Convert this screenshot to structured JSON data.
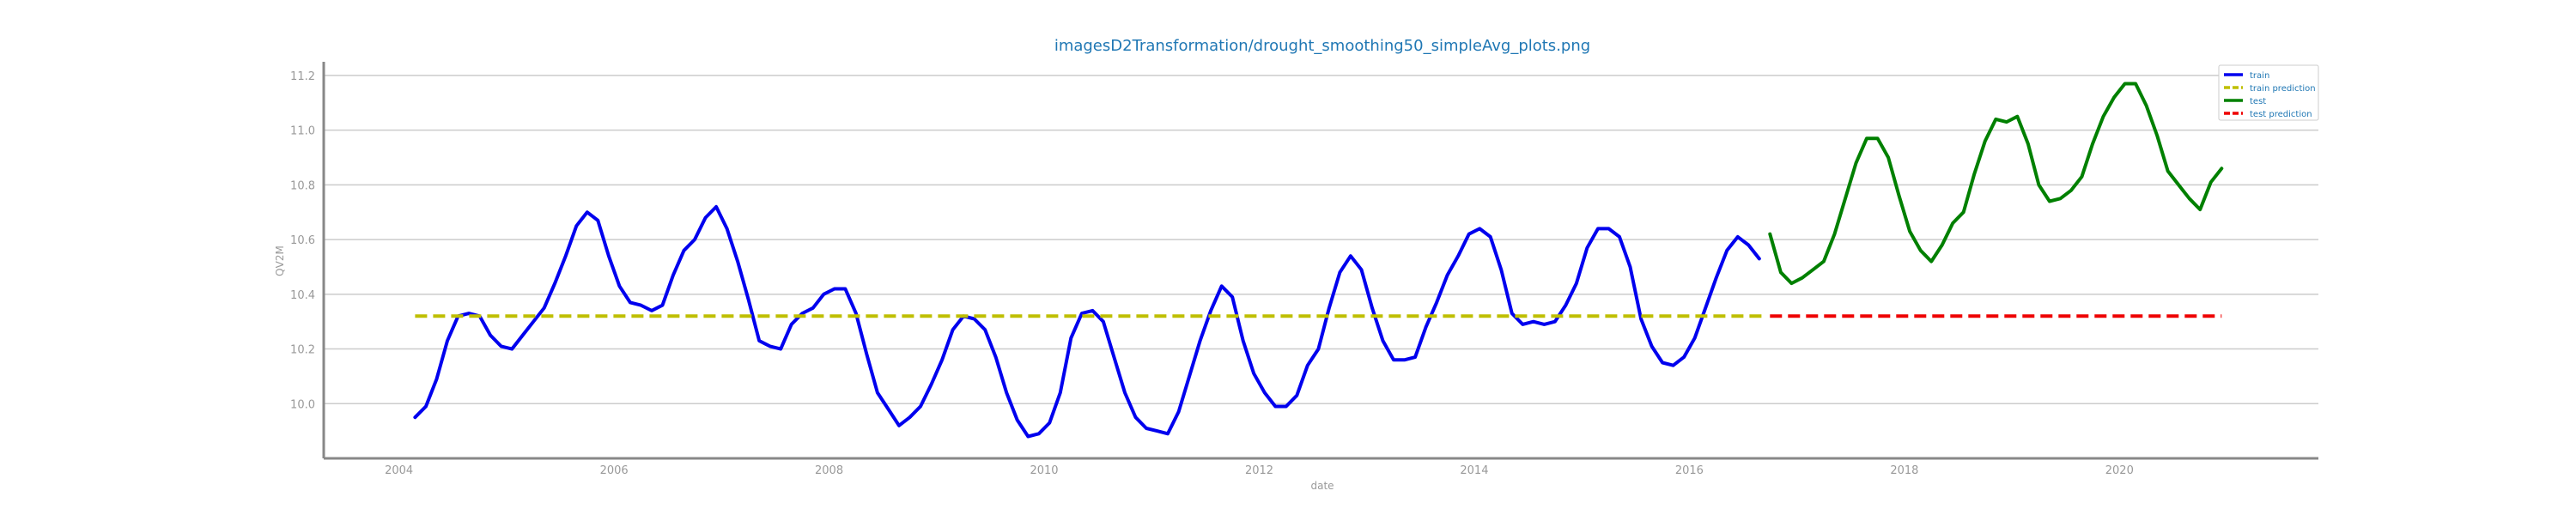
{
  "chart_data": {
    "type": "line",
    "title": "imagesD2Transformation/drought_smoothing50_simpleAvg_plots.png",
    "xlabel": "date",
    "ylabel": "QV2M",
    "xlim": [
      2003.3,
      2021.85
    ],
    "ylim": [
      9.8,
      11.25
    ],
    "x_ticks": [
      2004,
      2006,
      2008,
      2010,
      2012,
      2014,
      2016,
      2018,
      2020
    ],
    "y_ticks": [
      10.0,
      10.2,
      10.4,
      10.6,
      10.8,
      11.0,
      11.2
    ],
    "y_tick_labels": [
      "10.0",
      "10.2",
      "10.4",
      "10.6",
      "10.8",
      "11.0",
      "11.2"
    ],
    "grid": "horizontal",
    "legend_position": "top-right",
    "series": [
      {
        "name": "train",
        "color": "#0000ee",
        "style": "solid",
        "x": [
          2004.15,
          2004.25,
          2004.35,
          2004.45,
          2004.55,
          2004.65,
          2004.75,
          2004.85,
          2004.95,
          2005.05,
          2005.15,
          2005.25,
          2005.35,
          2005.45,
          2005.55,
          2005.65,
          2005.75,
          2005.85,
          2005.95,
          2006.05,
          2006.15,
          2006.25,
          2006.35,
          2006.45,
          2006.55,
          2006.65,
          2006.75,
          2006.85,
          2006.95,
          2007.05,
          2007.15,
          2007.25,
          2007.35,
          2007.45,
          2007.55,
          2007.65,
          2007.75,
          2007.85,
          2007.95,
          2008.05,
          2008.15,
          2008.25,
          2008.35,
          2008.45,
          2008.55,
          2008.65,
          2008.75,
          2008.85,
          2008.95,
          2009.05,
          2009.15,
          2009.25,
          2009.35,
          2009.45,
          2009.55,
          2009.65,
          2009.75,
          2009.85,
          2009.95,
          2010.05,
          2010.15,
          2010.25,
          2010.35,
          2010.45,
          2010.55,
          2010.65,
          2010.75,
          2010.85,
          2010.95,
          2011.05,
          2011.15,
          2011.25,
          2011.35,
          2011.45,
          2011.55,
          2011.65,
          2011.75,
          2011.85,
          2011.95,
          2012.05,
          2012.15,
          2012.25,
          2012.35,
          2012.45,
          2012.55,
          2012.65,
          2012.75,
          2012.85,
          2012.95,
          2013.05,
          2013.15,
          2013.25,
          2013.35,
          2013.45,
          2013.55,
          2013.65,
          2013.75,
          2013.85,
          2013.95,
          2014.05,
          2014.15,
          2014.25,
          2014.35,
          2014.45,
          2014.55,
          2014.65,
          2014.75,
          2014.85,
          2014.95,
          2015.05,
          2015.15,
          2015.25,
          2015.35,
          2015.45,
          2015.55,
          2015.65,
          2015.75,
          2015.85,
          2015.95,
          2016.05,
          2016.15,
          2016.25,
          2016.35,
          2016.45,
          2016.55,
          2016.65
        ],
        "values": [
          9.95,
          9.99,
          10.09,
          10.23,
          10.32,
          10.33,
          10.32,
          10.25,
          10.21,
          10.2,
          10.25,
          10.3,
          10.35,
          10.44,
          10.54,
          10.65,
          10.7,
          10.67,
          10.54,
          10.43,
          10.37,
          10.36,
          10.34,
          10.36,
          10.47,
          10.56,
          10.6,
          10.68,
          10.72,
          10.64,
          10.52,
          10.38,
          10.23,
          10.21,
          10.2,
          10.29,
          10.33,
          10.35,
          10.4,
          10.42,
          10.42,
          10.33,
          10.18,
          10.04,
          9.98,
          9.92,
          9.95,
          9.99,
          10.07,
          10.16,
          10.27,
          10.32,
          10.31,
          10.27,
          10.17,
          10.04,
          9.94,
          9.88,
          9.89,
          9.93,
          10.04,
          10.24,
          10.33,
          10.34,
          10.3,
          10.17,
          10.04,
          9.95,
          9.91,
          9.9,
          9.89,
          9.97,
          10.1,
          10.23,
          10.34,
          10.43,
          10.39,
          10.23,
          10.11,
          10.04,
          9.99,
          9.99,
          10.03,
          10.14,
          10.2,
          10.35,
          10.48,
          10.54,
          10.49,
          10.35,
          10.23,
          10.16,
          10.16,
          10.17,
          10.28,
          10.37,
          10.47,
          10.54,
          10.62,
          10.64,
          10.61,
          10.49,
          10.33,
          10.29,
          10.3,
          10.29,
          10.3,
          10.36,
          10.44,
          10.57,
          10.64,
          10.64,
          10.61,
          10.5,
          10.31,
          10.21,
          10.15,
          10.14,
          10.17,
          10.24,
          10.35,
          10.46,
          10.56,
          10.61,
          10.58,
          10.53
        ]
      },
      {
        "name": "train prediction",
        "color": "#bfbf00",
        "style": "dashed",
        "x": [
          2004.15,
          2016.7
        ],
        "values": [
          10.32,
          10.32
        ]
      },
      {
        "name": "test",
        "color": "#008000",
        "style": "solid",
        "x": [
          2016.75,
          2016.85,
          2016.95,
          2017.05,
          2017.15,
          2017.25,
          2017.35,
          2017.45,
          2017.55,
          2017.65,
          2017.75,
          2017.85,
          2017.95,
          2018.05,
          2018.15,
          2018.25,
          2018.35,
          2018.45,
          2018.55,
          2018.65,
          2018.75,
          2018.85,
          2018.95,
          2019.05,
          2019.15,
          2019.25,
          2019.35,
          2019.45,
          2019.55,
          2019.65,
          2019.75,
          2019.85,
          2019.95,
          2020.05,
          2020.15,
          2020.25,
          2020.35,
          2020.45,
          2020.55,
          2020.65,
          2020.75,
          2020.85,
          2020.95
        ],
        "values": [
          10.62,
          10.48,
          10.44,
          10.46,
          10.49,
          10.52,
          10.62,
          10.75,
          10.88,
          10.97,
          10.97,
          10.9,
          10.76,
          10.63,
          10.56,
          10.52,
          10.58,
          10.66,
          10.7,
          10.84,
          10.96,
          11.04,
          11.03,
          11.05,
          10.95,
          10.8,
          10.74,
          10.75,
          10.78,
          10.83,
          10.95,
          11.05,
          11.12,
          11.17,
          11.17,
          11.09,
          10.98,
          10.85,
          10.8,
          10.75,
          10.71,
          10.81,
          10.86
        ]
      },
      {
        "name": "test prediction",
        "color": "#ee0000",
        "style": "dashed",
        "x": [
          2016.75,
          2020.95
        ],
        "values": [
          10.32,
          10.32
        ]
      }
    ]
  }
}
